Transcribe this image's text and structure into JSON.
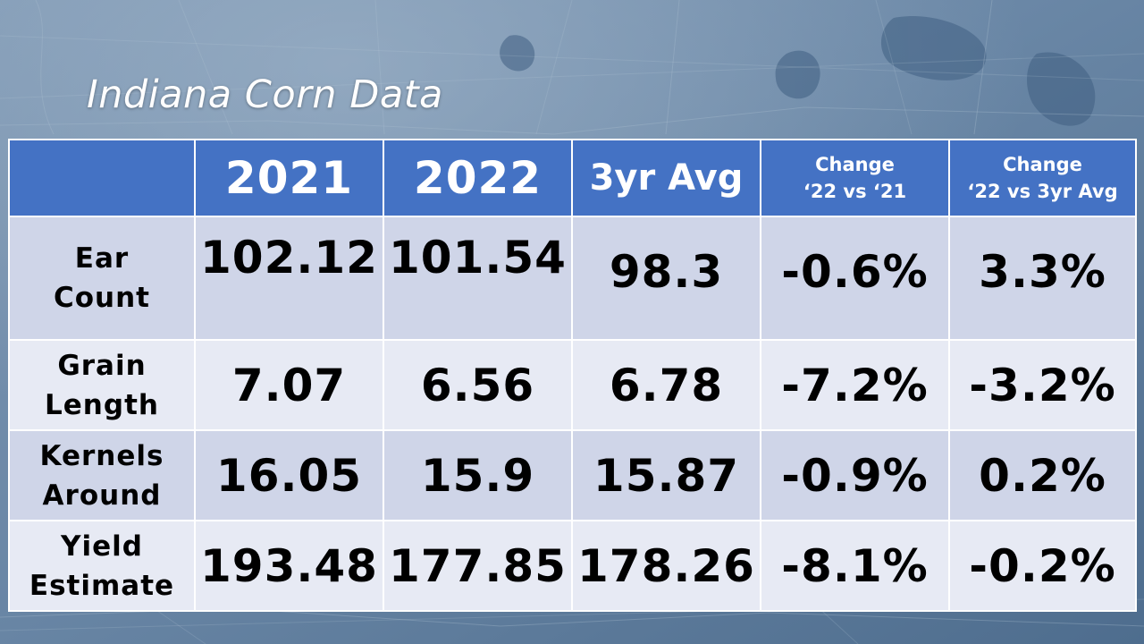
{
  "title": "Indiana Corn Data",
  "columns": [
    "",
    "2021",
    "2022",
    "3yr Avg",
    "Change ‘22 vs ‘21",
    "Change ‘22 vs 3yr Avg"
  ],
  "column_header_lines": {
    "change_vs_2021": [
      "Change",
      "‘22 vs ‘21"
    ],
    "change_vs_avg": [
      "Change",
      "‘22 vs 3yr Avg"
    ]
  },
  "rows": [
    {
      "label_lines": [
        "Ear",
        "Count"
      ],
      "y2021": "102.12",
      "y2022": "101.54",
      "avg3yr": "98.3",
      "chg_vs_2021": "-0.6%",
      "chg_vs_avg": "3.3%"
    },
    {
      "label_lines": [
        "Grain",
        "Length"
      ],
      "y2021": "7.07",
      "y2022": "6.56",
      "avg3yr": "6.78",
      "chg_vs_2021": "-7.2%",
      "chg_vs_avg": "-3.2%"
    },
    {
      "label_lines": [
        "Kernels",
        "Around"
      ],
      "y2021": "16.05",
      "y2022": "15.9",
      "avg3yr": "15.87",
      "chg_vs_2021": "-0.9%",
      "chg_vs_avg": "0.2%"
    },
    {
      "label_lines": [
        "Yield",
        "Estimate"
      ],
      "y2021": "193.48",
      "y2022": "177.85",
      "avg3yr": "178.26",
      "chg_vs_2021": "-8.1%",
      "chg_vs_avg": "-0.2%"
    }
  ],
  "colors": {
    "header_bg": "#4472c4",
    "row_dark": "#cfd5e8",
    "row_light": "#e7eaf4",
    "background": "#5f7d9c"
  }
}
